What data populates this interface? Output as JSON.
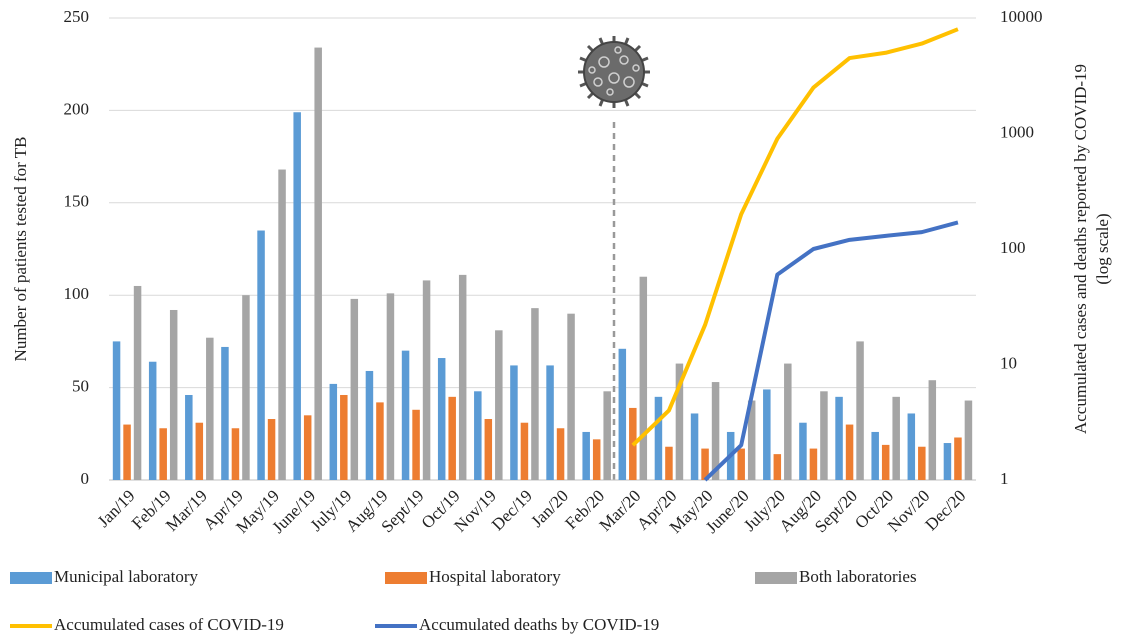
{
  "chart_data": {
    "type": "bar+line",
    "ylabel": "Number of patients tested for TB",
    "y2label": [
      "Accumulated cases and deaths reported by COVID-19",
      "(log scale)"
    ],
    "categories": [
      "Jan/19",
      "Feb/19",
      "Mar/19",
      "Apr/19",
      "May/19",
      "June/19",
      "July/19",
      "Aug/19",
      "Sept/19",
      "Oct/19",
      "Nov/19",
      "Dec/19",
      "Jan/20",
      "Feb/20",
      "Mar/20",
      "Apr/20",
      "May/20",
      "June/20",
      "July/20",
      "Aug/20",
      "Sept/20",
      "Oct/20",
      "Nov/20",
      "Dec/20"
    ],
    "series": [
      {
        "name": "Municipal laboratory",
        "kind": "bar",
        "color": "#5b9bd5",
        "values": [
          75,
          64,
          46,
          72,
          135,
          199,
          52,
          59,
          70,
          66,
          48,
          62,
          62,
          26,
          71,
          45,
          36,
          26,
          49,
          31,
          45,
          26,
          36,
          20
        ]
      },
      {
        "name": "Hospital laboratory",
        "kind": "bar",
        "color": "#ed7d31",
        "values": [
          30,
          28,
          31,
          28,
          33,
          35,
          46,
          42,
          38,
          45,
          33,
          31,
          28,
          22,
          39,
          18,
          17,
          17,
          14,
          17,
          30,
          19,
          18,
          23
        ]
      },
      {
        "name": "Both laboratories",
        "kind": "bar",
        "color": "#a5a5a5",
        "values": [
          105,
          92,
          77,
          100,
          168,
          234,
          98,
          101,
          108,
          111,
          81,
          93,
          90,
          48,
          110,
          63,
          53,
          43,
          63,
          48,
          75,
          45,
          54,
          43
        ]
      },
      {
        "name": "Accumulated cases of COVID-19",
        "kind": "line",
        "axis": "y2",
        "color": "#ffc000",
        "values": [
          null,
          null,
          null,
          null,
          null,
          null,
          null,
          null,
          null,
          null,
          null,
          null,
          null,
          null,
          2,
          4,
          22,
          200,
          900,
          2500,
          4500,
          5000,
          6000,
          8000
        ]
      },
      {
        "name": "Accumulated deaths by COVID-19",
        "kind": "line",
        "axis": "y2",
        "color": "#4472c4",
        "values": [
          null,
          null,
          null,
          null,
          null,
          null,
          null,
          null,
          null,
          null,
          null,
          null,
          null,
          null,
          null,
          null,
          1,
          2,
          60,
          100,
          120,
          130,
          140,
          170
        ]
      }
    ],
    "ylim": [
      0,
      250
    ],
    "yticks": [
      0,
      50,
      100,
      150,
      200,
      250
    ],
    "y2lim": [
      1,
      10000
    ],
    "y2ticks": [
      1,
      10,
      100,
      1000,
      10000
    ],
    "y2log": true,
    "grid": true,
    "legend": "bottom"
  }
}
